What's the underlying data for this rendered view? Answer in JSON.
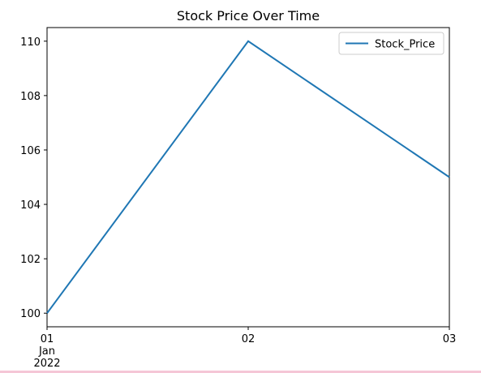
{
  "chart_data": {
    "type": "line",
    "title": "Stock Price Over Time",
    "xlabel": "",
    "ylabel": "",
    "x": [
      "2022-01-01",
      "2022-01-02",
      "2022-01-03"
    ],
    "x_tick_labels": [
      {
        "day": "01",
        "month": "Jan",
        "year": "2022"
      },
      {
        "day": "02",
        "month": "",
        "year": ""
      },
      {
        "day": "03",
        "month": "",
        "year": ""
      }
    ],
    "series": [
      {
        "name": "Stock_Price",
        "values": [
          100,
          110,
          105
        ],
        "color": "#1f77b4"
      }
    ],
    "ylim": [
      99.5,
      110.5
    ],
    "y_ticks": [
      100,
      102,
      104,
      106,
      108,
      110
    ],
    "grid": false,
    "legend_position": "upper-right"
  }
}
